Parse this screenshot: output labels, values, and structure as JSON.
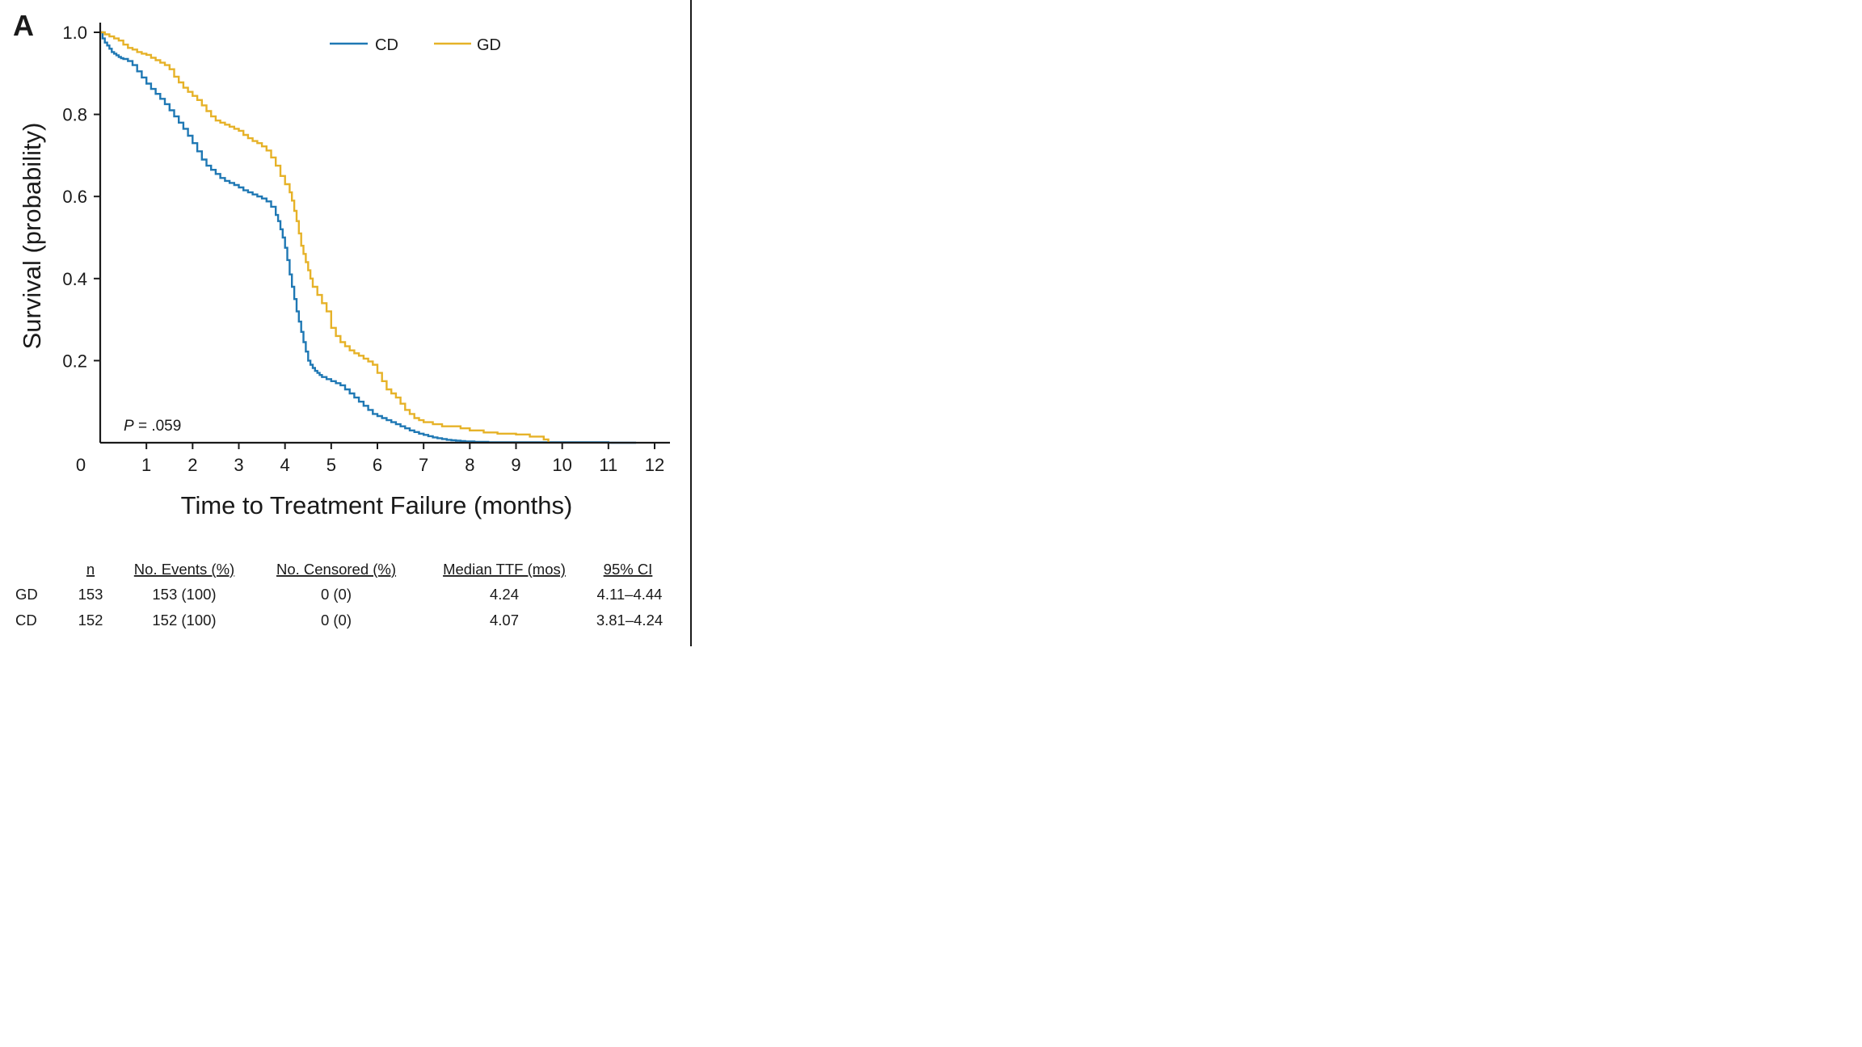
{
  "panel_label": "A",
  "p_value": {
    "prefix": "P",
    "text": " = .059"
  },
  "chart_data": {
    "type": "line",
    "step": true,
    "xlabel": "Time to Treatment Failure (months)",
    "ylabel": "Survival (probability)",
    "xlim": [
      0,
      12
    ],
    "ylim": [
      0,
      1.0
    ],
    "x_ticks": [
      1,
      2,
      3,
      4,
      5,
      6,
      7,
      8,
      9,
      10,
      11,
      12
    ],
    "x_tick_labels": [
      "1",
      "2",
      "3",
      "4",
      "5",
      "6",
      "7",
      "8",
      "9",
      "10",
      "11",
      "12"
    ],
    "x_origin_label": "0",
    "y_ticks": [
      0.2,
      0.4,
      0.6,
      0.8,
      1.0
    ],
    "y_tick_labels": [
      "0.2",
      "0.4",
      "0.6",
      "0.8",
      "1.0"
    ],
    "grid": false,
    "legend_position": "top",
    "series": [
      {
        "name": "CD",
        "color": "#1f78b4",
        "x": [
          0,
          0.05,
          0.1,
          0.15,
          0.2,
          0.25,
          0.3,
          0.35,
          0.4,
          0.45,
          0.5,
          0.6,
          0.7,
          0.8,
          0.9,
          1.0,
          1.1,
          1.2,
          1.3,
          1.4,
          1.5,
          1.6,
          1.7,
          1.8,
          1.9,
          2.0,
          2.1,
          2.2,
          2.3,
          2.4,
          2.5,
          2.6,
          2.7,
          2.8,
          2.9,
          3.0,
          3.1,
          3.2,
          3.3,
          3.4,
          3.5,
          3.6,
          3.7,
          3.8,
          3.85,
          3.9,
          3.95,
          4.0,
          4.05,
          4.1,
          4.15,
          4.2,
          4.25,
          4.3,
          4.35,
          4.4,
          4.45,
          4.5,
          4.55,
          4.6,
          4.65,
          4.7,
          4.75,
          4.8,
          4.9,
          5.0,
          5.1,
          5.2,
          5.3,
          5.4,
          5.5,
          5.6,
          5.7,
          5.8,
          5.9,
          6.0,
          6.1,
          6.2,
          6.3,
          6.4,
          6.5,
          6.6,
          6.7,
          6.8,
          6.9,
          7.0,
          7.1,
          7.2,
          7.3,
          7.4,
          7.5,
          7.6,
          7.7,
          7.8,
          7.9,
          8.0,
          8.1,
          8.2,
          8.3,
          8.4,
          8.5,
          8.7,
          9.0,
          9.5,
          10.0,
          10.5,
          11.0,
          11.6
        ],
        "values": [
          1.0,
          0.985,
          0.975,
          0.968,
          0.96,
          0.952,
          0.948,
          0.944,
          0.94,
          0.937,
          0.935,
          0.93,
          0.92,
          0.905,
          0.89,
          0.875,
          0.862,
          0.85,
          0.838,
          0.825,
          0.81,
          0.795,
          0.78,
          0.765,
          0.748,
          0.73,
          0.71,
          0.69,
          0.675,
          0.665,
          0.655,
          0.645,
          0.638,
          0.633,
          0.628,
          0.622,
          0.615,
          0.61,
          0.605,
          0.6,
          0.595,
          0.588,
          0.575,
          0.555,
          0.54,
          0.52,
          0.5,
          0.475,
          0.445,
          0.41,
          0.38,
          0.35,
          0.32,
          0.295,
          0.27,
          0.245,
          0.222,
          0.2,
          0.19,
          0.182,
          0.175,
          0.17,
          0.165,
          0.16,
          0.155,
          0.15,
          0.145,
          0.14,
          0.13,
          0.12,
          0.11,
          0.1,
          0.09,
          0.08,
          0.07,
          0.065,
          0.06,
          0.055,
          0.05,
          0.045,
          0.04,
          0.035,
          0.03,
          0.026,
          0.022,
          0.019,
          0.016,
          0.013,
          0.011,
          0.009,
          0.007,
          0.006,
          0.005,
          0.004,
          0.003,
          0.003,
          0.002,
          0.002,
          0.002,
          0.001,
          0.001,
          0.001,
          0.001,
          0.001,
          0.001,
          0.001,
          0.0,
          0.0
        ]
      },
      {
        "name": "GD",
        "color": "#e6b228",
        "x": [
          0,
          0.1,
          0.2,
          0.3,
          0.4,
          0.5,
          0.6,
          0.7,
          0.8,
          0.9,
          1.0,
          1.1,
          1.2,
          1.3,
          1.4,
          1.5,
          1.6,
          1.7,
          1.8,
          1.9,
          2.0,
          2.1,
          2.2,
          2.3,
          2.4,
          2.5,
          2.6,
          2.7,
          2.8,
          2.9,
          3.0,
          3.1,
          3.2,
          3.3,
          3.4,
          3.5,
          3.6,
          3.7,
          3.8,
          3.9,
          4.0,
          4.1,
          4.15,
          4.2,
          4.25,
          4.3,
          4.35,
          4.4,
          4.45,
          4.5,
          4.55,
          4.6,
          4.7,
          4.8,
          4.9,
          5.0,
          5.1,
          5.2,
          5.3,
          5.4,
          5.5,
          5.6,
          5.7,
          5.8,
          5.9,
          6.0,
          6.1,
          6.2,
          6.3,
          6.4,
          6.5,
          6.6,
          6.7,
          6.8,
          6.9,
          7.0,
          7.2,
          7.4,
          7.6,
          7.8,
          8.0,
          8.3,
          8.6,
          9.0,
          9.3,
          9.6,
          9.7
        ],
        "values": [
          1.0,
          0.995,
          0.99,
          0.985,
          0.98,
          0.97,
          0.962,
          0.958,
          0.952,
          0.948,
          0.945,
          0.938,
          0.932,
          0.926,
          0.92,
          0.91,
          0.892,
          0.878,
          0.865,
          0.855,
          0.845,
          0.835,
          0.822,
          0.808,
          0.795,
          0.785,
          0.78,
          0.775,
          0.77,
          0.765,
          0.76,
          0.75,
          0.742,
          0.735,
          0.73,
          0.722,
          0.712,
          0.695,
          0.675,
          0.65,
          0.63,
          0.61,
          0.59,
          0.565,
          0.54,
          0.51,
          0.48,
          0.46,
          0.44,
          0.42,
          0.4,
          0.38,
          0.36,
          0.34,
          0.32,
          0.28,
          0.26,
          0.245,
          0.235,
          0.225,
          0.218,
          0.212,
          0.205,
          0.198,
          0.19,
          0.17,
          0.15,
          0.13,
          0.12,
          0.11,
          0.095,
          0.08,
          0.07,
          0.06,
          0.055,
          0.05,
          0.045,
          0.04,
          0.04,
          0.035,
          0.03,
          0.025,
          0.022,
          0.02,
          0.015,
          0.008,
          0.0
        ]
      }
    ]
  },
  "summary_table": {
    "headers": [
      "n",
      "No. Events (%)",
      "No. Censored (%)",
      "Median TTF (mos)",
      "95% CI"
    ],
    "rows": [
      {
        "group": "GD",
        "cells": [
          "153",
          "153 (100)",
          "0 (0)",
          "4.24",
          "4.11–4.44"
        ]
      },
      {
        "group": "CD",
        "cells": [
          "152",
          "152 (100)",
          "0 (0)",
          "4.07",
          "3.81–4.24"
        ]
      }
    ]
  }
}
